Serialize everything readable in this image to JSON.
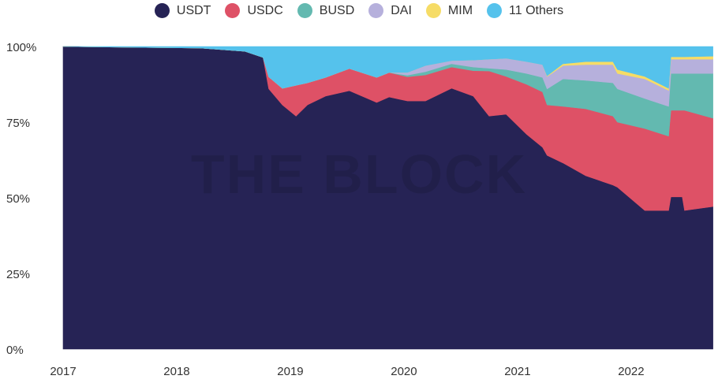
{
  "watermark": "THE BLOCK",
  "chart_data": {
    "type": "area",
    "stacked": true,
    "normalized": true,
    "title": "",
    "xlabel": "",
    "ylabel": "",
    "ylim": [
      0,
      100
    ],
    "xlim": [
      2017.0,
      2022.73
    ],
    "legend_position": "top-center",
    "grid": false,
    "y_ticks": [
      "0%",
      "25%",
      "50%",
      "75%",
      "100%"
    ],
    "y_tick_values": [
      0,
      25,
      50,
      75,
      100
    ],
    "x_ticks": [
      "2017",
      "2018",
      "2019",
      "2020",
      "2021",
      "2022"
    ],
    "x_tick_values": [
      2017,
      2018,
      2019,
      2020,
      2021,
      2022
    ],
    "x": [
      2017.0,
      2018.2,
      2018.6,
      2018.76,
      2018.81,
      2018.93,
      2019.05,
      2019.15,
      2019.31,
      2019.52,
      2019.76,
      2019.87,
      2020.03,
      2020.19,
      2020.42,
      2020.61,
      2020.75,
      2020.9,
      2021.08,
      2021.22,
      2021.26,
      2021.4,
      2021.6,
      2021.84,
      2021.88,
      2022.12,
      2022.33,
      2022.35,
      2022.45,
      2022.47,
      2022.72
    ],
    "series": [
      {
        "name": "USDT",
        "color": "#262355",
        "values": [
          100,
          99.5,
          98.4,
          96.4,
          86,
          80.7,
          77,
          80.7,
          83.6,
          85.4,
          81.5,
          83.3,
          82,
          82,
          86.2,
          83.6,
          77,
          77.6,
          71,
          66.7,
          64,
          61.5,
          57.3,
          54.2,
          53.5,
          45.8,
          45.8,
          50.3,
          50.3,
          45.8,
          47.1
        ]
      },
      {
        "name": "USDC",
        "color": "#de5166",
        "values": [
          0,
          0,
          0,
          0,
          4,
          5.5,
          10.2,
          7.3,
          6.2,
          7.3,
          8.3,
          8.1,
          8,
          8.6,
          7,
          8.4,
          14.9,
          12.5,
          16.5,
          18.3,
          16.7,
          18.7,
          22.1,
          22.8,
          21.5,
          27.1,
          24.6,
          28.6,
          28.6,
          33.1,
          29.2
        ]
      },
      {
        "name": "BUSD",
        "color": "#63b9b0",
        "values": [
          0,
          0,
          0,
          0,
          0,
          0,
          0,
          0,
          0,
          0,
          0,
          0,
          0.5,
          1.1,
          1.1,
          1.2,
          0.9,
          2.3,
          3.6,
          4.8,
          5.3,
          9.1,
          9.4,
          11,
          11,
          9.9,
          9.8,
          12.2,
          12.2,
          12.2,
          14.8
        ]
      },
      {
        "name": "DAI",
        "color": "#b6b0dc",
        "values": [
          0,
          0,
          0,
          0,
          0,
          0,
          0,
          0,
          0,
          0,
          0,
          0,
          0.9,
          2,
          1,
          2.3,
          3,
          3.7,
          3.9,
          4.2,
          4.1,
          4.4,
          5.2,
          6,
          5.1,
          6.5,
          5.3,
          4.7,
          4.7,
          4.7,
          4.7
        ]
      },
      {
        "name": "MIM",
        "color": "#f6dc66",
        "values": [
          0,
          0,
          0,
          0,
          0,
          0,
          0,
          0,
          0,
          0,
          0,
          0,
          0,
          0,
          0,
          0,
          0,
          0,
          0,
          0,
          0.2,
          0.6,
          1,
          1,
          1.3,
          0.8,
          0.7,
          0.8,
          0.8,
          0.8,
          1
        ]
      },
      {
        "name": "11 Others",
        "color": "#55c2ec",
        "values": [
          0,
          0.5,
          1.6,
          3.6,
          10,
          13.8,
          12.8,
          12,
          10.2,
          7.3,
          10.2,
          8.6,
          8.6,
          6.3,
          4.7,
          4.5,
          4.2,
          3.9,
          5,
          6,
          9.7,
          5.7,
          5,
          5,
          7.6,
          9.9,
          13.8,
          3.4,
          3.4,
          3.4,
          3.2
        ]
      }
    ]
  }
}
